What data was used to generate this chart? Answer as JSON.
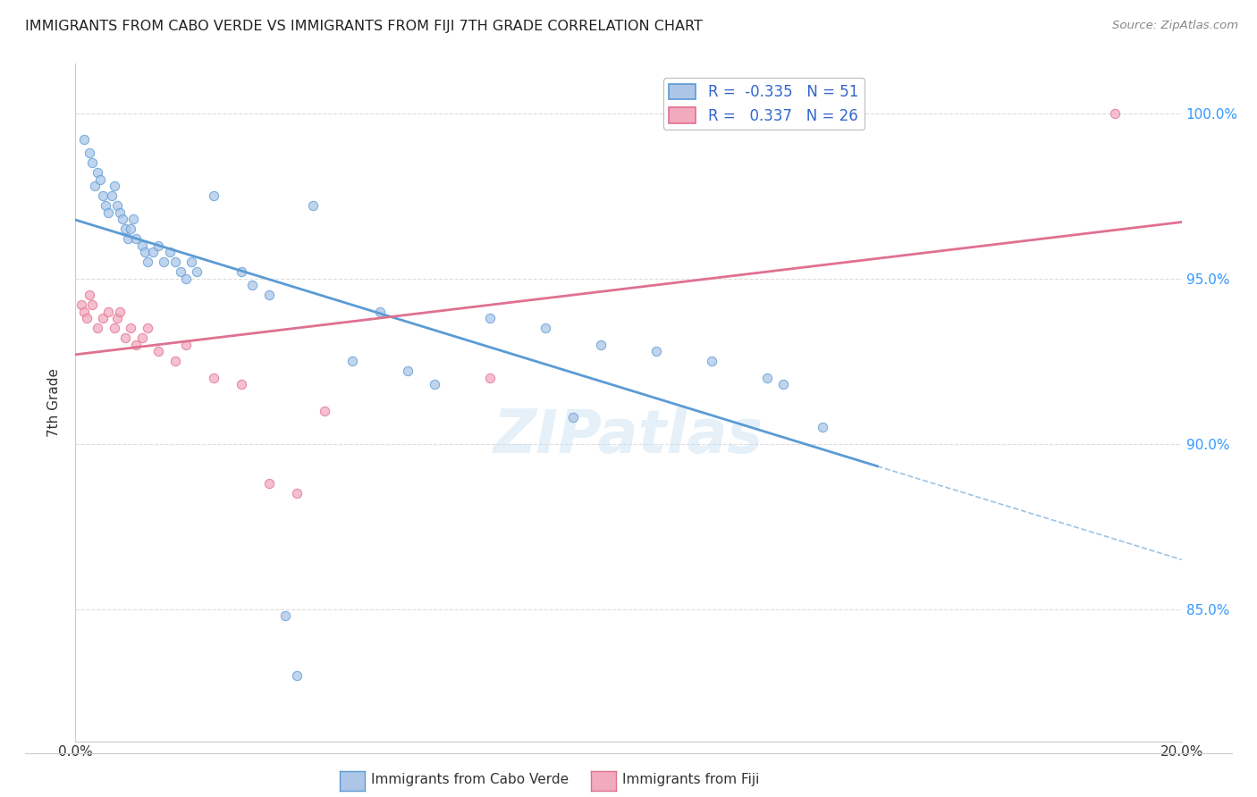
{
  "title": "IMMIGRANTS FROM CABO VERDE VS IMMIGRANTS FROM FIJI 7TH GRADE CORRELATION CHART",
  "source": "Source: ZipAtlas.com",
  "ylabel": "7th Grade",
  "legend_label1": "Immigrants from Cabo Verde",
  "legend_label2": "Immigrants from Fiji",
  "R1": -0.335,
  "N1": 51,
  "R2": 0.337,
  "N2": 26,
  "watermark": "ZIPatlas",
  "xmin": 0.0,
  "xmax": 20.0,
  "ymin": 81.0,
  "ymax": 101.5,
  "ytick_labels": [
    "85.0%",
    "90.0%",
    "95.0%",
    "100.0%"
  ],
  "ytick_values": [
    85.0,
    90.0,
    95.0,
    100.0
  ],
  "xtick_labels": [
    "0.0%",
    "",
    "",
    "",
    "20.0%"
  ],
  "xtick_values": [
    0.0,
    5.0,
    10.0,
    15.0,
    20.0
  ],
  "color_blue": "#adc6e8",
  "color_pink": "#f2aabf",
  "line_blue": "#5b9bd5",
  "line_pink": "#e07090",
  "blue_x": [
    0.15,
    0.25,
    0.3,
    0.35,
    0.4,
    0.45,
    0.5,
    0.55,
    0.6,
    0.65,
    0.7,
    0.75,
    0.8,
    0.85,
    0.9,
    0.95,
    1.0,
    1.05,
    1.1,
    1.2,
    1.25,
    1.3,
    1.4,
    1.5,
    1.6,
    1.7,
    1.8,
    1.9,
    2.0,
    2.1,
    2.2,
    2.5,
    3.0,
    3.2,
    3.5,
    4.3,
    5.5,
    7.5,
    8.5,
    9.5,
    10.5,
    11.5,
    12.5,
    12.8,
    13.5,
    5.0,
    6.0,
    6.5,
    3.8,
    9.0,
    4.0
  ],
  "blue_y": [
    99.2,
    98.8,
    98.5,
    97.8,
    98.2,
    98.0,
    97.5,
    97.2,
    97.0,
    97.5,
    97.8,
    97.2,
    97.0,
    96.8,
    96.5,
    96.2,
    96.5,
    96.8,
    96.2,
    96.0,
    95.8,
    95.5,
    95.8,
    96.0,
    95.5,
    95.8,
    95.5,
    95.2,
    95.0,
    95.5,
    95.2,
    97.5,
    95.2,
    94.8,
    94.5,
    97.2,
    94.0,
    93.8,
    93.5,
    93.0,
    92.8,
    92.5,
    92.0,
    91.8,
    90.5,
    92.5,
    92.2,
    91.8,
    84.8,
    90.8,
    83.0
  ],
  "pink_x": [
    0.1,
    0.15,
    0.2,
    0.25,
    0.3,
    0.4,
    0.5,
    0.6,
    0.7,
    0.75,
    0.8,
    0.9,
    1.0,
    1.1,
    1.2,
    1.3,
    1.5,
    1.8,
    2.0,
    2.5,
    3.0,
    3.5,
    4.0,
    4.5,
    7.5,
    18.8
  ],
  "pink_y": [
    94.2,
    94.0,
    93.8,
    94.5,
    94.2,
    93.5,
    93.8,
    94.0,
    93.5,
    93.8,
    94.0,
    93.2,
    93.5,
    93.0,
    93.2,
    93.5,
    92.8,
    92.5,
    93.0,
    92.0,
    91.8,
    88.8,
    88.5,
    91.0,
    92.0,
    100.0
  ],
  "blue_trend_x_start": 0.0,
  "blue_trend_x_solid_end": 14.5,
  "blue_trend_x_dash_end": 20.0,
  "pink_trend_x_start": 0.0,
  "pink_trend_x_end": 20.0,
  "background_color": "#ffffff",
  "grid_color": "#dddddd"
}
